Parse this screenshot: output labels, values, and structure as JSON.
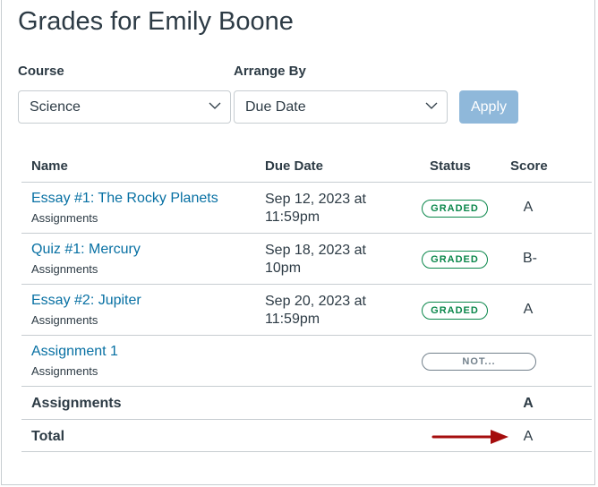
{
  "title": "Grades for Emily Boone",
  "filters": {
    "course_label": "Course",
    "course_value": "Science",
    "arrange_label": "Arrange By",
    "arrange_value": "Due Date",
    "apply_label": "Apply"
  },
  "table": {
    "headers": [
      "Name",
      "Due Date",
      "Status",
      "Score"
    ],
    "rows": [
      {
        "name": "Essay #1: The Rocky Planets",
        "group": "Assignments",
        "due1": "Sep 12, 2023 at",
        "due2": "11:59pm",
        "status": "GRADED",
        "score": "A"
      },
      {
        "name": "Quiz #1: Mercury",
        "group": "Assignments",
        "due1": "Sep 18, 2023 at",
        "due2": "10pm",
        "status": "GRADED",
        "score": "B-"
      },
      {
        "name": "Essay #2: Jupiter",
        "group": "Assignments",
        "due1": "Sep 20, 2023 at",
        "due2": "11:59pm",
        "status": "GRADED",
        "score": "A"
      },
      {
        "name": "Assignment 1",
        "group": "Assignments",
        "due1": "",
        "due2": "",
        "status": "NOT...",
        "score": ""
      }
    ],
    "summary": [
      {
        "label": "Assignments",
        "score": "A"
      },
      {
        "label": "Total",
        "score": "A"
      }
    ]
  },
  "colors": {
    "link": "#0770a3",
    "graded": "#0b874b",
    "apply": "#8fb8da",
    "arrow": "#a50d0d"
  }
}
